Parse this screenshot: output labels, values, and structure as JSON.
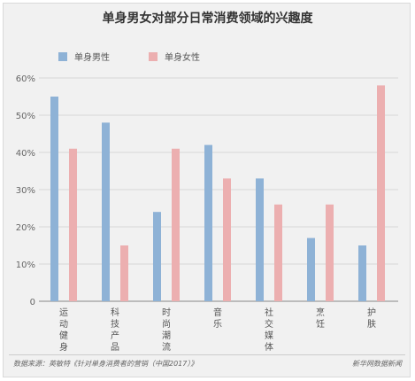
{
  "title": "单身男女对部分日常消费领域的兴趣度",
  "legend": [
    {
      "name": "单身男性",
      "color": "#8eb2d6"
    },
    {
      "name": "单身女性",
      "color": "#ecafb0"
    }
  ],
  "chart_data": {
    "type": "bar",
    "title": "单身男女对部分日常消费领域的兴趣度",
    "categories": [
      "运动健身",
      "科技产品",
      "时尚潮流",
      "音乐",
      "社交媒体",
      "烹饪",
      "护肤"
    ],
    "series": [
      {
        "name": "单身男性",
        "values": [
          55,
          48,
          24,
          42,
          33,
          17,
          15
        ]
      },
      {
        "name": "单身女性",
        "values": [
          41,
          15,
          41,
          33,
          26,
          26,
          58
        ]
      }
    ],
    "yticks": [
      "0",
      "10%",
      "20%",
      "30%",
      "40%",
      "50%",
      "60%"
    ],
    "ylim": [
      0,
      60
    ],
    "xlabel": "",
    "ylabel": "",
    "grid": true,
    "legend_position": "top-left"
  },
  "footer": {
    "source": "数据来源：英敏特《针对单身消费者的营销（中国2017）》",
    "credit": "新华网数据新闻"
  }
}
